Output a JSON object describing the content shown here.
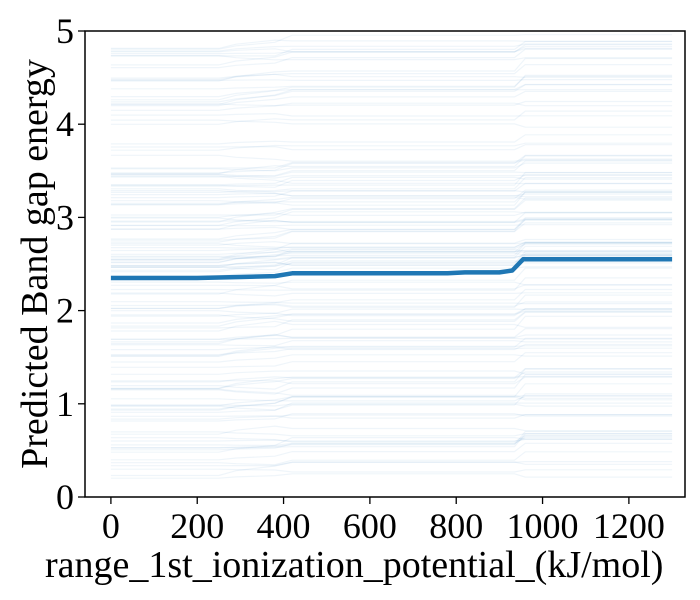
{
  "chart_data": {
    "type": "line",
    "title": "",
    "xlabel": "range_1st_ionization_potential_(kJ/mol)",
    "ylabel": "Predicted Band gap energy",
    "xlim": [
      -60,
      1330
    ],
    "ylim": [
      0,
      5
    ],
    "x_ticks": [
      0,
      200,
      400,
      600,
      800,
      1000,
      1200
    ],
    "y_ticks": [
      0,
      1,
      2,
      3,
      4,
      5
    ],
    "x_tick_labels": [
      "0",
      "200",
      "400",
      "600",
      "800",
      "1000",
      "1200"
    ],
    "y_tick_labels": [
      "0",
      "1",
      "2",
      "3",
      "4",
      "5"
    ],
    "grid": false,
    "legend": "none",
    "colors": {
      "average": "#1f77b4",
      "ice": "#1f77b4"
    },
    "series": [
      {
        "x": [
          0,
          100,
          200,
          250,
          300,
          380,
          420,
          500,
          600,
          700,
          780,
          820,
          900,
          930,
          955,
          1000,
          1100,
          1200,
          1300
        ],
        "values": [
          2.35,
          2.35,
          2.35,
          2.355,
          2.36,
          2.37,
          2.4,
          2.4,
          2.4,
          2.4,
          2.4,
          2.41,
          2.41,
          2.43,
          2.55,
          2.55,
          2.55,
          2.55,
          2.55
        ]
      }
    ],
    "ice_lines": {
      "count": 140,
      "opacity": 0.07,
      "y_range": [
        0.2,
        4.95
      ],
      "step_x": [
        250,
        400,
        950
      ]
    }
  }
}
